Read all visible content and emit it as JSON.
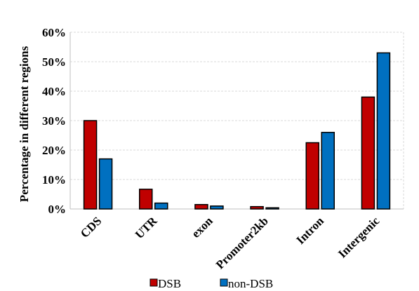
{
  "chart_data": {
    "type": "bar",
    "categories": [
      "CDS",
      "UTR",
      "exon",
      "Promoter2kb",
      "Intron",
      "Intergenic"
    ],
    "series": [
      {
        "name": "DSB",
        "values": [
          30,
          6.7,
          1.5,
          0.8,
          22.5,
          38
        ],
        "color": "#c00000"
      },
      {
        "name": "non-DSB",
        "values": [
          17,
          2,
          1,
          0.4,
          26,
          53
        ],
        "color": "#0070c0"
      }
    ],
    "xlabel": "",
    "ylabel": "Percentage  in different regions",
    "ylim": [
      0,
      60
    ],
    "yticks": [
      0,
      10,
      20,
      30,
      40,
      50,
      60
    ],
    "ytick_labels": [
      "0%",
      "10%",
      "20%",
      "30%",
      "40%",
      "50%",
      "60%"
    ],
    "grid": true,
    "legend": "bottom"
  }
}
